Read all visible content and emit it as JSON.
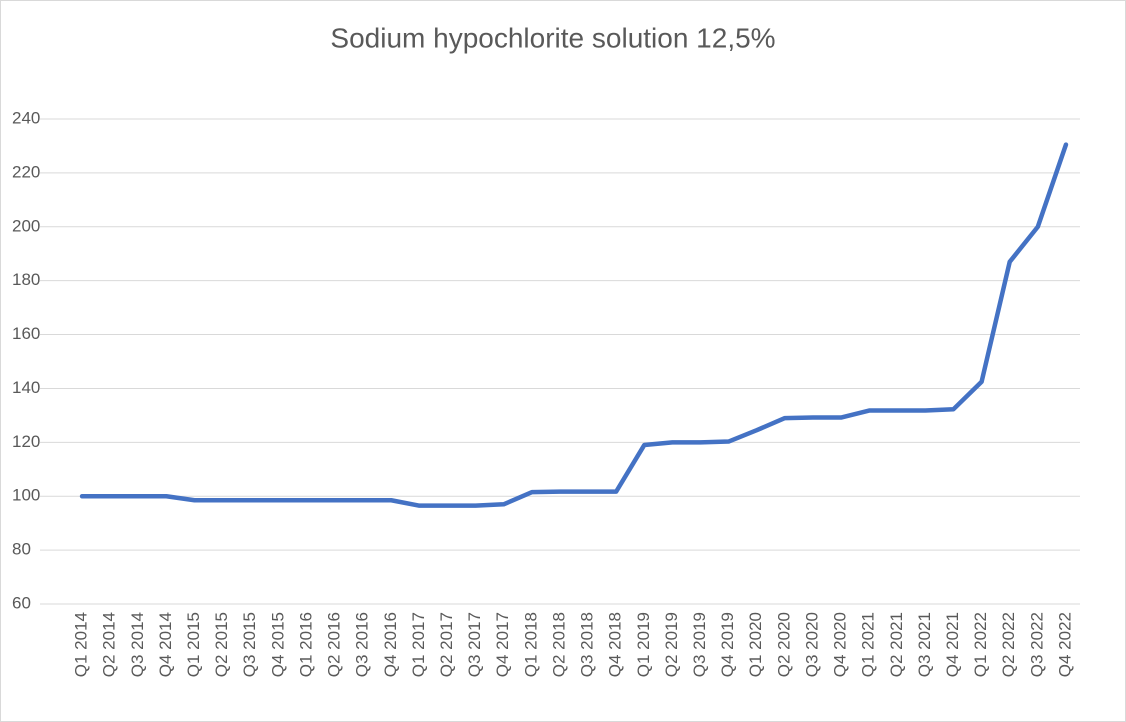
{
  "chart_data": {
    "type": "line",
    "title": "Sodium hypochlorite solution 12,5%",
    "categories": [
      "Q1 2014",
      "Q2 2014",
      "Q3 2014",
      "Q4 2014",
      "Q1 2015",
      "Q2 2015",
      "Q3 2015",
      "Q4 2015",
      "Q1 2016",
      "Q2 2016",
      "Q3 2016",
      "Q4 2016",
      "Q1 2017",
      "Q2 2017",
      "Q3 2017",
      "Q4 2017",
      "Q1 2018",
      "Q2 2018",
      "Q3 2018",
      "Q4 2018",
      "Q1 2019",
      "Q2 2019",
      "Q3 2019",
      "Q4 2019",
      "Q1 2020",
      "Q2 2020",
      "Q3 2020",
      "Q4 2020",
      "Q1 2021",
      "Q2 2021",
      "Q3 2021",
      "Q4 2021",
      "Q1 2022",
      "Q2 2022",
      "Q3 2022",
      "Q4 2022"
    ],
    "values": [
      100,
      100,
      100,
      100,
      98.5,
      98.5,
      98.5,
      98.5,
      98.5,
      98.5,
      98.5,
      98.5,
      96.5,
      96.5,
      96.5,
      97,
      101.5,
      101.7,
      101.7,
      101.7,
      119,
      120,
      120,
      120.3,
      124.5,
      129,
      129.2,
      129.2,
      131.8,
      131.8,
      131.8,
      132.3,
      142.5,
      187,
      200,
      230.5
    ],
    "color": "#4472c4",
    "ylim": [
      60,
      240
    ],
    "yticks": [
      60,
      80,
      100,
      120,
      140,
      160,
      180,
      200,
      220,
      240
    ],
    "grid": true
  }
}
